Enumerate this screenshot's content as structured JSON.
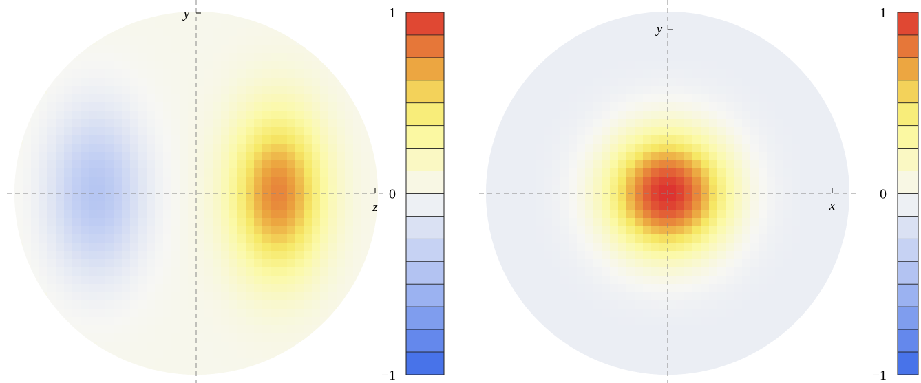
{
  "chart_data": [
    {
      "type": "heatmap",
      "shape": "disk",
      "xlabel": "z",
      "ylabel": "y",
      "color_range": [
        -1,
        1
      ],
      "field": "dipole",
      "peak_value": 0.75,
      "peak_at": [
        0.45,
        0.0
      ],
      "trough_value": -0.45,
      "trough_at": [
        -0.55,
        0.0
      ],
      "background_value": 0.03,
      "colorbar": {
        "ticks": [
          {
            "value": 1,
            "label": "1"
          },
          {
            "value": 0,
            "label": "0"
          },
          {
            "value": -1,
            "label": "−1"
          }
        ],
        "bands": 16
      }
    },
    {
      "type": "heatmap",
      "shape": "disk",
      "xlabel": "x",
      "ylabel": "y",
      "color_range": [
        -1,
        1
      ],
      "field": "monopole",
      "peak_value": 1.0,
      "peak_at": [
        0.0,
        0.0
      ],
      "background_value": -0.08,
      "colorbar": {
        "ticks": [
          {
            "value": 1,
            "label": "1"
          },
          {
            "value": 0,
            "label": "0"
          },
          {
            "value": -1,
            "label": "−1"
          }
        ],
        "bands": 16
      }
    }
  ],
  "colors": {
    "scale": [
      [
        -1.0,
        "#3a68e8"
      ],
      [
        -0.5,
        "#a9bcf2"
      ],
      [
        0.0,
        "#f7f7f4"
      ],
      [
        0.3,
        "#fbf9a6"
      ],
      [
        0.5,
        "#f6e866"
      ],
      [
        0.7,
        "#eba23e"
      ],
      [
        1.0,
        "#dd3030"
      ]
    ],
    "dashed_axis": "#888888"
  }
}
